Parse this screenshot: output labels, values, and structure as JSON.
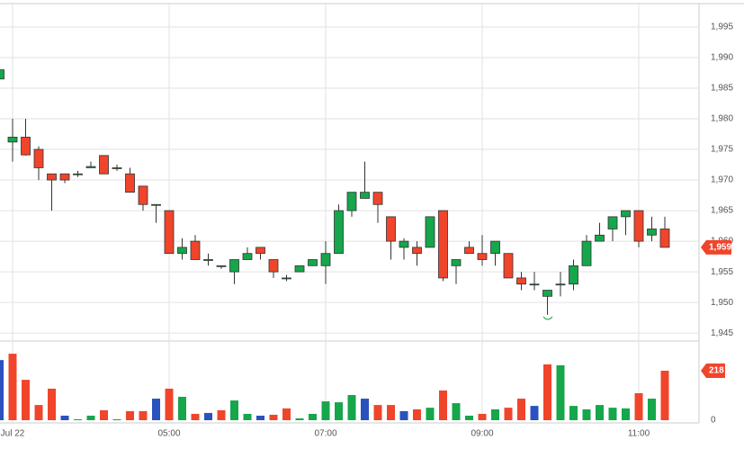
{
  "chart_data": {
    "type": "candlestick",
    "x": [
      "02:50",
      "03:00",
      "03:10",
      "03:20",
      "03:30",
      "03:40",
      "03:50",
      "04:00",
      "04:10",
      "04:20",
      "04:30",
      "04:40",
      "04:50",
      "05:00",
      "05:10",
      "05:20",
      "05:30",
      "05:40",
      "05:50",
      "06:00",
      "06:10",
      "06:20",
      "06:30",
      "06:40",
      "06:50",
      "07:00",
      "07:10",
      "07:20",
      "07:30",
      "07:40",
      "07:50",
      "08:00",
      "08:10",
      "08:20",
      "08:30",
      "08:40",
      "08:50",
      "09:00",
      "09:10",
      "09:20",
      "09:30",
      "09:40",
      "09:50",
      "10:00",
      "10:10",
      "10:20",
      "10:30",
      "10:40",
      "10:50",
      "11:00",
      "11:10",
      "11:20"
    ],
    "open": [
      1986.5,
      1976.2,
      1977,
      1975,
      1971,
      1971,
      1971,
      1972,
      1974,
      1972,
      1971,
      1969,
      1966,
      1965,
      1958,
      1960,
      1957,
      1956,
      1955,
      1957,
      1959,
      1957,
      1954,
      1955,
      1956,
      1956,
      1958,
      1965,
      1967,
      1968,
      1964,
      1959,
      1959,
      1959,
      1965,
      1956,
      1959,
      1958,
      1958,
      1958,
      1954,
      1953,
      1951,
      1953,
      1953,
      1956,
      1960,
      1962,
      1964,
      1965,
      1961,
      1962
    ],
    "high": [
      1988.5,
      1980,
      1980,
      1975.5,
      1971,
      1971,
      1971.5,
      1973,
      1974,
      1972.5,
      1972,
      1969,
      1966,
      1965,
      1960.5,
      1961,
      1958,
      1956,
      1957,
      1959,
      1959,
      1957,
      1954.5,
      1956,
      1957,
      1960,
      1966,
      1968,
      1973,
      1968,
      1964,
      1960.5,
      1960,
      1964,
      1965,
      1957,
      1960,
      1961,
      1960,
      1958,
      1955,
      1955,
      1952,
      1955,
      1957,
      1961,
      1963,
      1964,
      1965,
      1965,
      1964,
      1964
    ],
    "low": [
      1985,
      1973,
      1974,
      1970,
      1965,
      1969.5,
      1970.5,
      1972,
      1971,
      1971.5,
      1968,
      1965,
      1963,
      1958,
      1957,
      1957,
      1956,
      1955.5,
      1953,
      1957,
      1957,
      1954,
      1953.5,
      1955,
      1956,
      1953,
      1958,
      1964,
      1967,
      1963,
      1957,
      1957,
      1956,
      1959,
      1953.5,
      1953,
      1958,
      1956,
      1956,
      1954,
      1952,
      1952,
      1948,
      1951,
      1952,
      1956,
      1960,
      1960,
      1961,
      1959,
      1960,
      1959
    ],
    "close": [
      1988,
      1977,
      1974.1,
      1972,
      1970,
      1970,
      1971,
      1972.2,
      1971,
      1972,
      1968,
      1966,
      1966,
      1958,
      1959,
      1957,
      1957,
      1956,
      1957,
      1958,
      1958,
      1955,
      1954,
      1956,
      1957,
      1958,
      1965,
      1968,
      1968,
      1966,
      1960,
      1960,
      1958,
      1964,
      1954,
      1957,
      1958,
      1957,
      1960,
      1954,
      1953,
      1953,
      1952,
      1953,
      1956,
      1960,
      1961,
      1964,
      1965,
      1960,
      1962,
      1959
    ],
    "close_label": "1,959",
    "volume": [
      265,
      293,
      178,
      67,
      139,
      20,
      4,
      20,
      44,
      4,
      40,
      40,
      95,
      139,
      103,
      28,
      32,
      44,
      87,
      28,
      20,
      24,
      52,
      8,
      28,
      83,
      79,
      111,
      95,
      67,
      67,
      40,
      48,
      55,
      131,
      75,
      20,
      28,
      48,
      55,
      95,
      63,
      246,
      242,
      63,
      48,
      67,
      55,
      52,
      119,
      95,
      218
    ],
    "volume_colors": [
      "#2a52be",
      "#f0452b",
      "#f0452b",
      "#f0452b",
      "#f0452b",
      "#2a52be",
      "#16a64b",
      "#16a64b",
      "#f0452b",
      "#16a64b",
      "#f0452b",
      "#f0452b",
      "#2a52be",
      "#f0452b",
      "#16a64b",
      "#f0452b",
      "#2a52be",
      "#f0452b",
      "#16a64b",
      "#16a64b",
      "#2a52be",
      "#f0452b",
      "#f0452b",
      "#16a64b",
      "#16a64b",
      "#16a64b",
      "#16a64b",
      "#16a64b",
      "#2a52be",
      "#f0452b",
      "#f0452b",
      "#2a52be",
      "#f0452b",
      "#16a64b",
      "#f0452b",
      "#16a64b",
      "#16a64b",
      "#f0452b",
      "#16a64b",
      "#f0452b",
      "#f0452b",
      "#2a52be",
      "#f0452b",
      "#16a64b",
      "#16a64b",
      "#16a64b",
      "#16a64b",
      "#16a64b",
      "#16a64b",
      "#f0452b",
      "#16a64b",
      "#f0452b"
    ],
    "up_color": "#16a64b",
    "down_color": "#f0452b",
    "ylim": [
      1943.7,
      1999.4
    ],
    "yticks": [
      {
        "value": 1945,
        "label": "1,945"
      },
      {
        "value": 1950,
        "label": "1,950"
      },
      {
        "value": 1955,
        "label": "1,955"
      },
      {
        "value": 1960,
        "label": "1,960"
      },
      {
        "value": 1965,
        "label": "1,965"
      },
      {
        "value": 1970,
        "label": "1,970"
      },
      {
        "value": 1975,
        "label": "1,975"
      },
      {
        "value": 1980,
        "label": "1,980"
      },
      {
        "value": 1985,
        "label": "1,985"
      },
      {
        "value": 1990,
        "label": "1,990"
      },
      {
        "value": 1995,
        "label": "1,995"
      }
    ],
    "volume_ylim": [
      0,
      345
    ],
    "volume_yticks": [
      0
    ],
    "xticks": [
      {
        "value": "03:00",
        "label": "Jul 22"
      },
      "05:00",
      "07:00",
      "09:00",
      "11:00"
    ],
    "grid": true
  }
}
